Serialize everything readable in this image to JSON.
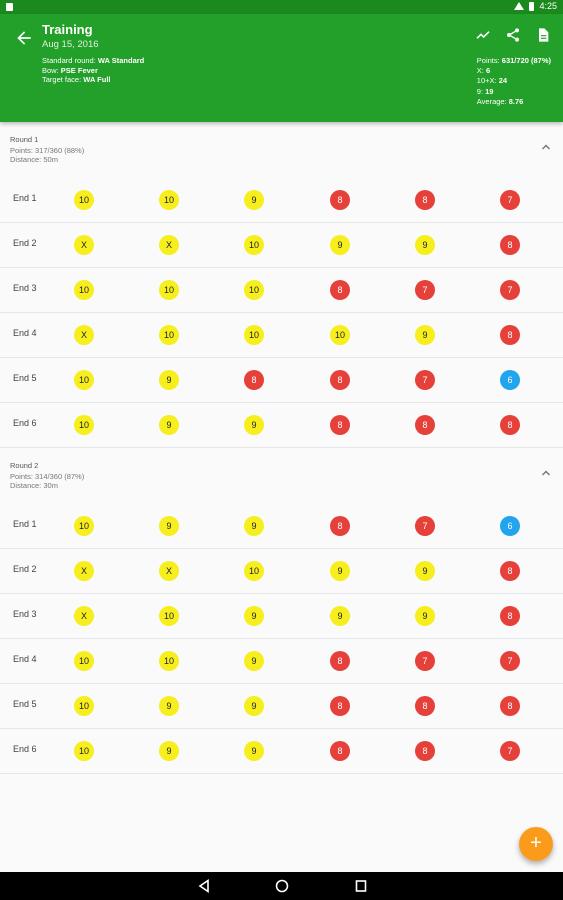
{
  "status_bar": {
    "time": "4:25"
  },
  "app_bar": {
    "title": "Training",
    "date": "Aug 15, 2016",
    "info": [
      {
        "label": "Standard round: ",
        "value": "WA Standard"
      },
      {
        "label": "Bow: ",
        "value": "PSE Fever"
      },
      {
        "label": "Target face: ",
        "value": "WA Full"
      }
    ],
    "stats": [
      {
        "label": "Points: ",
        "value": "631/720 (87%)"
      },
      {
        "label": "X: ",
        "value": "6"
      },
      {
        "label": "10+X: ",
        "value": "24"
      },
      {
        "label": "9: ",
        "value": "19"
      },
      {
        "label": "Average: ",
        "value": "8.76"
      }
    ],
    "icons": [
      "back-arrow-icon",
      "chart-icon",
      "share-icon",
      "document-icon"
    ]
  },
  "rounds": [
    {
      "name": "Round 1",
      "points": "Points: 317/360 (88%)",
      "distance": "Distance: 50m",
      "ends": [
        {
          "label": "End 1",
          "shots": [
            "10",
            "10",
            "9",
            "8",
            "8",
            "7"
          ]
        },
        {
          "label": "End 2",
          "shots": [
            "X",
            "X",
            "10",
            "9",
            "9",
            "8"
          ]
        },
        {
          "label": "End 3",
          "shots": [
            "10",
            "10",
            "10",
            "8",
            "7",
            "7"
          ]
        },
        {
          "label": "End 4",
          "shots": [
            "X",
            "10",
            "10",
            "10",
            "9",
            "8"
          ]
        },
        {
          "label": "End 5",
          "shots": [
            "10",
            "9",
            "8",
            "8",
            "7",
            "6"
          ]
        },
        {
          "label": "End 6",
          "shots": [
            "10",
            "9",
            "9",
            "8",
            "8",
            "8"
          ]
        }
      ]
    },
    {
      "name": "Round 2",
      "points": "Points: 314/360 (87%)",
      "distance": "Distance: 30m",
      "ends": [
        {
          "label": "End 1",
          "shots": [
            "10",
            "9",
            "9",
            "8",
            "7",
            "6"
          ]
        },
        {
          "label": "End 2",
          "shots": [
            "X",
            "X",
            "10",
            "9",
            "9",
            "8"
          ]
        },
        {
          "label": "End 3",
          "shots": [
            "X",
            "10",
            "9",
            "9",
            "9",
            "8"
          ]
        },
        {
          "label": "End 4",
          "shots": [
            "10",
            "10",
            "9",
            "8",
            "7",
            "7"
          ]
        },
        {
          "label": "End 5",
          "shots": [
            "10",
            "9",
            "9",
            "8",
            "8",
            "8"
          ]
        },
        {
          "label": "End 6",
          "shots": [
            "10",
            "9",
            "9",
            "8",
            "8",
            "7"
          ]
        }
      ]
    }
  ],
  "fab": {
    "label": "+"
  },
  "colors": {
    "yellow": "#f6ee1d",
    "red": "#e5403a",
    "blue": "#22a4ee",
    "green": "#22a029",
    "fab": "#fb9b1c"
  }
}
